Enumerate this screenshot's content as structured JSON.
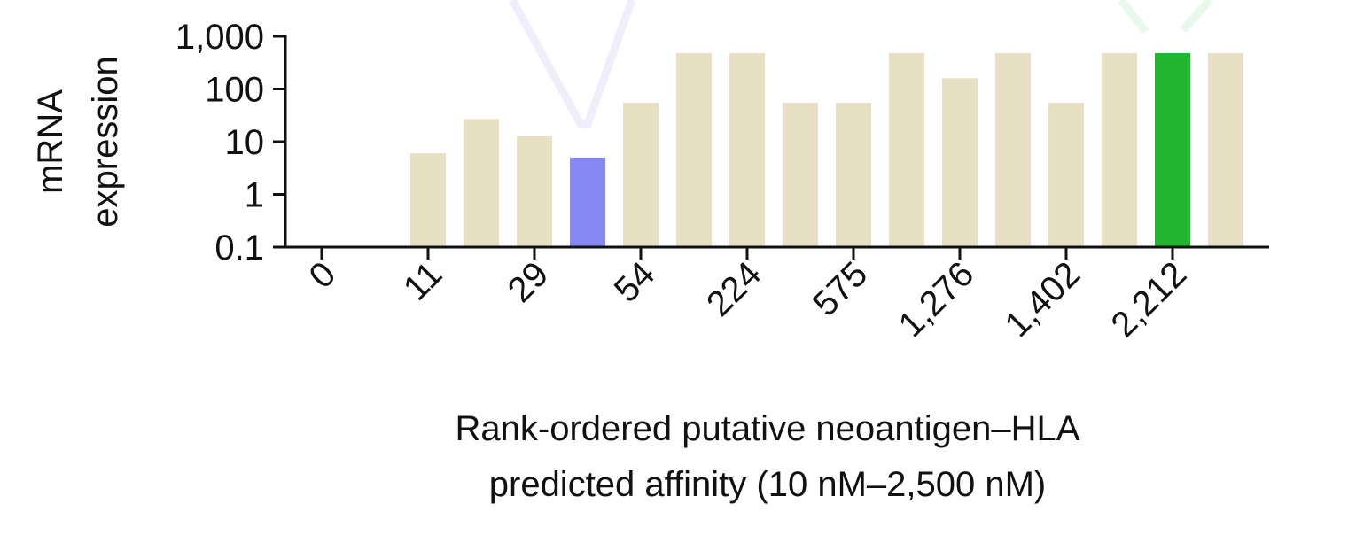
{
  "chart_data": {
    "type": "bar",
    "y_scale": "log",
    "ylim": [
      0.1,
      1000
    ],
    "yticks": [
      {
        "value": 0.1,
        "label": "0.1"
      },
      {
        "value": 1,
        "label": "1"
      },
      {
        "value": 10,
        "label": "10"
      },
      {
        "value": 100,
        "label": "100"
      },
      {
        "value": 1000,
        "label": "1,000"
      }
    ],
    "ylabel_lines": [
      "mRNA",
      "expression"
    ],
    "xlabel_lines": [
      "Rank-ordered putative neoantigen–HLA",
      "predicted affinity (10 nM–2,500 nM)"
    ],
    "x_tick_labels": [
      {
        "bar_index": 0,
        "label": "0"
      },
      {
        "bar_index": 2,
        "label": "11"
      },
      {
        "bar_index": 4,
        "label": "29"
      },
      {
        "bar_index": 6,
        "label": "54"
      },
      {
        "bar_index": 8,
        "label": "224"
      },
      {
        "bar_index": 10,
        "label": "575"
      },
      {
        "bar_index": 12,
        "label": "1,276"
      },
      {
        "bar_index": 14,
        "label": "1,402"
      },
      {
        "bar_index": 16,
        "label": "2,212"
      }
    ],
    "bars": [
      {
        "value": null,
        "color": "#e8e0c4"
      },
      {
        "value": null,
        "color": "#e8e0c4"
      },
      {
        "value": 6,
        "color": "#e8e0c4"
      },
      {
        "value": 27,
        "color": "#e8e0c4"
      },
      {
        "value": 13,
        "color": "#e8e0c4"
      },
      {
        "value": 5,
        "color": "#8888f4"
      },
      {
        "value": 55,
        "color": "#e8e0c4"
      },
      {
        "value": 480,
        "color": "#e8e0c4"
      },
      {
        "value": 480,
        "color": "#e8e0c4"
      },
      {
        "value": 55,
        "color": "#e8e0c4"
      },
      {
        "value": 55,
        "color": "#e8e0c4"
      },
      {
        "value": 480,
        "color": "#e8e0c4"
      },
      {
        "value": 160,
        "color": "#e8e0c4"
      },
      {
        "value": 480,
        "color": "#e8e0c4"
      },
      {
        "value": 55,
        "color": "#e8e0c4"
      },
      {
        "value": 480,
        "color": "#e8e0c4"
      },
      {
        "value": 480,
        "color": "#22b530"
      },
      {
        "value": 480,
        "color": "#e8e0c4"
      }
    ],
    "highlight_connectors": {
      "blue_bar_index": 5,
      "blue_color": "#efeffc",
      "green_bar_index": 16,
      "green_color": "#e8f8ea"
    },
    "grid": false,
    "legend": "none"
  }
}
